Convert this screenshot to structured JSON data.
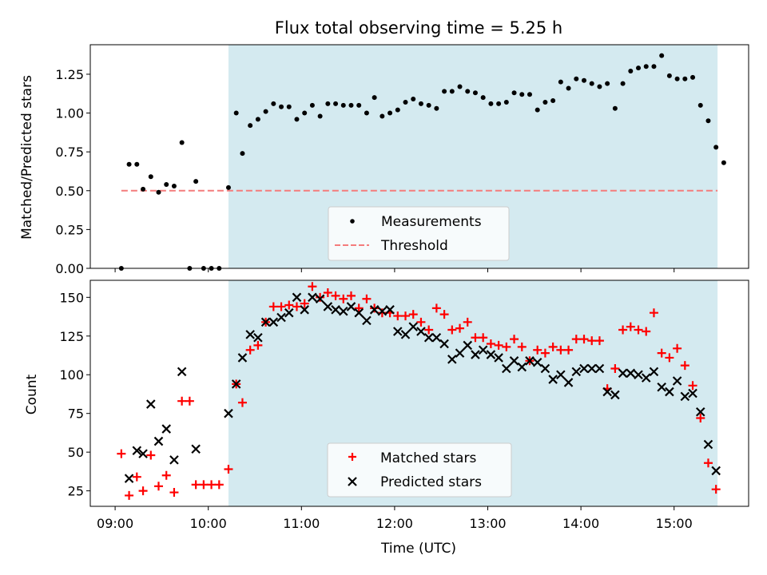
{
  "chart_data": {
    "type": "scatter",
    "title": "Flux total observing time = 5.25 h",
    "xlabel": "Time (UTC)",
    "x_tick_labels": [
      "09:00",
      "10:00",
      "11:00",
      "12:00",
      "13:00",
      "14:00",
      "15:00"
    ],
    "x_ticks": [
      "09:00",
      "10:00",
      "11:00",
      "12:00",
      "13:00",
      "14:00",
      "15:00"
    ],
    "xlim": [
      "08:44",
      "15:48"
    ],
    "shaded_interval": [
      "10:13",
      "15:28"
    ],
    "colors": {
      "shade": "#d4eaf0",
      "measurements": "#000000",
      "threshold": "#f47c7c",
      "matched": "#ff0000",
      "predicted": "#000000"
    },
    "top": {
      "ylabel": "Matched/Predicted stars",
      "ylim": [
        0,
        1.44
      ],
      "y_tick_labels": [
        "0.00",
        "0.25",
        "0.50",
        "0.75",
        "1.00",
        "1.25"
      ],
      "y_ticks": [
        0,
        0.25,
        0.5,
        0.75,
        1.0,
        1.25
      ],
      "threshold": 0.5,
      "threshold_range": [
        "09:04",
        "15:28"
      ],
      "legend": {
        "placement": "lower center",
        "entries": [
          "Measurements",
          "Threshold"
        ]
      },
      "measurements": [
        [
          "09:04",
          0.0
        ],
        [
          "09:09",
          0.67
        ],
        [
          "09:14",
          0.67
        ],
        [
          "09:18",
          0.51
        ],
        [
          "09:23",
          0.59
        ],
        [
          "09:28",
          0.49
        ],
        [
          "09:33",
          0.54
        ],
        [
          "09:38",
          0.53
        ],
        [
          "09:43",
          0.81
        ],
        [
          "09:48",
          0.0
        ],
        [
          "09:52",
          0.56
        ],
        [
          "09:57",
          0.0
        ],
        [
          "10:02",
          0.0
        ],
        [
          "10:07",
          0.0
        ],
        [
          "10:13",
          0.52
        ],
        [
          "10:18",
          1.0
        ],
        [
          "10:22",
          0.74
        ],
        [
          "10:27",
          0.92
        ],
        [
          "10:32",
          0.96
        ],
        [
          "10:37",
          1.01
        ],
        [
          "10:42",
          1.06
        ],
        [
          "10:47",
          1.04
        ],
        [
          "10:52",
          1.04
        ],
        [
          "10:57",
          0.96
        ],
        [
          "11:02",
          1.0
        ],
        [
          "11:07",
          1.05
        ],
        [
          "11:12",
          0.98
        ],
        [
          "11:17",
          1.06
        ],
        [
          "11:22",
          1.06
        ],
        [
          "11:27",
          1.05
        ],
        [
          "11:32",
          1.05
        ],
        [
          "11:37",
          1.05
        ],
        [
          "11:42",
          1.0
        ],
        [
          "11:47",
          1.1
        ],
        [
          "11:52",
          0.98
        ],
        [
          "11:57",
          1.0
        ],
        [
          "12:02",
          1.02
        ],
        [
          "12:07",
          1.07
        ],
        [
          "12:12",
          1.09
        ],
        [
          "12:17",
          1.06
        ],
        [
          "12:22",
          1.05
        ],
        [
          "12:27",
          1.03
        ],
        [
          "12:32",
          1.14
        ],
        [
          "12:37",
          1.14
        ],
        [
          "12:42",
          1.17
        ],
        [
          "12:47",
          1.14
        ],
        [
          "12:52",
          1.13
        ],
        [
          "12:57",
          1.1
        ],
        [
          "13:02",
          1.06
        ],
        [
          "13:07",
          1.06
        ],
        [
          "13:12",
          1.07
        ],
        [
          "13:17",
          1.13
        ],
        [
          "13:22",
          1.12
        ],
        [
          "13:27",
          1.12
        ],
        [
          "13:32",
          1.02
        ],
        [
          "13:37",
          1.07
        ],
        [
          "13:42",
          1.08
        ],
        [
          "13:47",
          1.2
        ],
        [
          "13:52",
          1.16
        ],
        [
          "13:57",
          1.22
        ],
        [
          "14:02",
          1.21
        ],
        [
          "14:07",
          1.19
        ],
        [
          "14:12",
          1.17
        ],
        [
          "14:17",
          1.19
        ],
        [
          "14:22",
          1.03
        ],
        [
          "14:27",
          1.19
        ],
        [
          "14:32",
          1.27
        ],
        [
          "14:37",
          1.29
        ],
        [
          "14:42",
          1.3
        ],
        [
          "14:47",
          1.3
        ],
        [
          "14:52",
          1.37
        ],
        [
          "14:57",
          1.24
        ],
        [
          "15:02",
          1.22
        ],
        [
          "15:07",
          1.22
        ],
        [
          "15:12",
          1.23
        ],
        [
          "15:17",
          1.05
        ],
        [
          "15:22",
          0.95
        ],
        [
          "15:27",
          0.78
        ],
        [
          "15:32",
          0.68
        ]
      ]
    },
    "bottom": {
      "ylabel": "Count",
      "ylim": [
        15,
        161
      ],
      "y_tick_labels": [
        "25",
        "50",
        "75",
        "100",
        "125",
        "150"
      ],
      "y_ticks": [
        25,
        50,
        75,
        100,
        125,
        150
      ],
      "legend": {
        "placement": "lower center",
        "entries": [
          "Matched stars",
          "Predicted stars"
        ]
      },
      "series": [
        {
          "name": "Matched stars",
          "marker": "+",
          "points": [
            [
              "09:04",
              49
            ],
            [
              "09:09",
              22
            ],
            [
              "09:14",
              34
            ],
            [
              "09:18",
              25
            ],
            [
              "09:23",
              48
            ],
            [
              "09:28",
              28
            ],
            [
              "09:33",
              35
            ],
            [
              "09:38",
              24
            ],
            [
              "09:43",
              83
            ],
            [
              "09:48",
              83
            ],
            [
              "09:52",
              29
            ],
            [
              "09:57",
              29
            ],
            [
              "10:02",
              29
            ],
            [
              "10:07",
              29
            ],
            [
              "10:13",
              39
            ],
            [
              "10:18",
              94
            ],
            [
              "10:22",
              82
            ],
            [
              "10:27",
              116
            ],
            [
              "10:32",
              119
            ],
            [
              "10:37",
              134
            ],
            [
              "10:42",
              144
            ],
            [
              "10:47",
              144
            ],
            [
              "10:52",
              145
            ],
            [
              "10:57",
              144
            ],
            [
              "11:02",
              146
            ],
            [
              "11:07",
              157
            ],
            [
              "11:12",
              150
            ],
            [
              "11:17",
              153
            ],
            [
              "11:22",
              151
            ],
            [
              "11:27",
              149
            ],
            [
              "11:32",
              151
            ],
            [
              "11:37",
              143
            ],
            [
              "11:42",
              149
            ],
            [
              "11:47",
              143
            ],
            [
              "11:52",
              140
            ],
            [
              "11:57",
              140
            ],
            [
              "12:02",
              138
            ],
            [
              "12:07",
              138
            ],
            [
              "12:12",
              139
            ],
            [
              "12:17",
              134
            ],
            [
              "12:22",
              129
            ],
            [
              "12:27",
              143
            ],
            [
              "12:32",
              139
            ],
            [
              "12:37",
              129
            ],
            [
              "12:42",
              130
            ],
            [
              "12:47",
              134
            ],
            [
              "12:52",
              124
            ],
            [
              "12:57",
              124
            ],
            [
              "13:02",
              120
            ],
            [
              "13:07",
              119
            ],
            [
              "13:12",
              118
            ],
            [
              "13:17",
              123
            ],
            [
              "13:22",
              118
            ],
            [
              "13:27",
              109
            ],
            [
              "13:32",
              116
            ],
            [
              "13:37",
              114
            ],
            [
              "13:42",
              118
            ],
            [
              "13:47",
              116
            ],
            [
              "13:52",
              116
            ],
            [
              "13:57",
              123
            ],
            [
              "14:02",
              123
            ],
            [
              "14:07",
              122
            ],
            [
              "14:12",
              122
            ],
            [
              "14:17",
              91
            ],
            [
              "14:22",
              104
            ],
            [
              "14:27",
              129
            ],
            [
              "14:32",
              131
            ],
            [
              "14:37",
              129
            ],
            [
              "14:42",
              128
            ],
            [
              "14:47",
              140
            ],
            [
              "14:52",
              114
            ],
            [
              "14:57",
              111
            ],
            [
              "15:02",
              117
            ],
            [
              "15:07",
              106
            ],
            [
              "15:12",
              93
            ],
            [
              "15:17",
              72
            ],
            [
              "15:22",
              43
            ],
            [
              "15:27",
              26
            ]
          ]
        },
        {
          "name": "Predicted stars",
          "marker": "x",
          "points": [
            [
              "09:09",
              33
            ],
            [
              "09:14",
              51
            ],
            [
              "09:18",
              49
            ],
            [
              "09:23",
              81
            ],
            [
              "09:28",
              57
            ],
            [
              "09:33",
              65
            ],
            [
              "09:38",
              45
            ],
            [
              "09:43",
              102
            ],
            [
              "09:52",
              52
            ],
            [
              "10:13",
              75
            ],
            [
              "10:18",
              94
            ],
            [
              "10:22",
              111
            ],
            [
              "10:27",
              126
            ],
            [
              "10:32",
              124
            ],
            [
              "10:37",
              134
            ],
            [
              "10:42",
              134
            ],
            [
              "10:47",
              137
            ],
            [
              "10:52",
              140
            ],
            [
              "10:57",
              150
            ],
            [
              "11:02",
              142
            ],
            [
              "11:07",
              150
            ],
            [
              "11:12",
              149
            ],
            [
              "11:17",
              144
            ],
            [
              "11:22",
              142
            ],
            [
              "11:27",
              141
            ],
            [
              "11:32",
              144
            ],
            [
              "11:37",
              140
            ],
            [
              "11:42",
              135
            ],
            [
              "11:47",
              142
            ],
            [
              "11:52",
              141
            ],
            [
              "11:57",
              142
            ],
            [
              "12:02",
              128
            ],
            [
              "12:07",
              126
            ],
            [
              "12:12",
              131
            ],
            [
              "12:17",
              128
            ],
            [
              "12:22",
              124
            ],
            [
              "12:27",
              124
            ],
            [
              "12:32",
              120
            ],
            [
              "12:37",
              110
            ],
            [
              "12:42",
              114
            ],
            [
              "12:47",
              119
            ],
            [
              "12:52",
              113
            ],
            [
              "12:57",
              116
            ],
            [
              "13:02",
              113
            ],
            [
              "13:07",
              111
            ],
            [
              "13:12",
              104
            ],
            [
              "13:17",
              109
            ],
            [
              "13:22",
              105
            ],
            [
              "13:27",
              109
            ],
            [
              "13:32",
              108
            ],
            [
              "13:37",
              104
            ],
            [
              "13:42",
              97
            ],
            [
              "13:47",
              100
            ],
            [
              "13:52",
              95
            ],
            [
              "13:57",
              102
            ],
            [
              "14:02",
              104
            ],
            [
              "14:07",
              104
            ],
            [
              "14:12",
              104
            ],
            [
              "14:17",
              89
            ],
            [
              "14:22",
              87
            ],
            [
              "14:27",
              101
            ],
            [
              "14:32",
              101
            ],
            [
              "14:37",
              100
            ],
            [
              "14:42",
              98
            ],
            [
              "14:47",
              102
            ],
            [
              "14:52",
              92
            ],
            [
              "14:57",
              89
            ],
            [
              "15:02",
              96
            ],
            [
              "15:07",
              86
            ],
            [
              "15:12",
              88
            ],
            [
              "15:17",
              76
            ],
            [
              "15:22",
              55
            ],
            [
              "15:27",
              38
            ]
          ]
        }
      ]
    }
  }
}
